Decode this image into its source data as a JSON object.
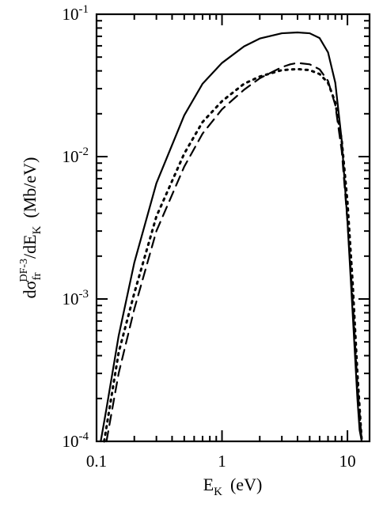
{
  "chart_data": {
    "type": "line",
    "title": "",
    "xscale": "log",
    "yscale": "log",
    "xlim": [
      0.1,
      15
    ],
    "ylim": [
      0.0001,
      0.1
    ],
    "grid": false,
    "legend": "none",
    "xlabel": {
      "main": "E",
      "sub": "K",
      "unit": "(eV)"
    },
    "ylabel": {
      "p1": "dσ",
      "sub": "fr",
      "sup": "DF-3",
      "p2": "/dE",
      "sub2": "K",
      "unit": "(Mb/eV)"
    },
    "x_ticks": [
      {
        "value": 0.1,
        "label": "0.1"
      },
      {
        "value": 1,
        "label": "1"
      },
      {
        "value": 10,
        "label": "10"
      }
    ],
    "y_ticks": [
      {
        "value": 0.0001,
        "base": "10",
        "exp": "-4"
      },
      {
        "value": 0.001,
        "base": "10",
        "exp": "-3"
      },
      {
        "value": 0.01,
        "base": "10",
        "exp": "-2"
      },
      {
        "value": 0.1,
        "base": "10",
        "exp": "-1"
      }
    ],
    "series": [
      {
        "style": "solid",
        "x": [
          0.108,
          0.12,
          0.15,
          0.2,
          0.3,
          0.5,
          0.7,
          1.0,
          1.5,
          2.0,
          3.0,
          4.0,
          5.0,
          6.0,
          7.0,
          8.0,
          9.0,
          10.0,
          11.0,
          12.0,
          12.5,
          13.0
        ],
        "y": [
          0.0001,
          0.00017,
          0.00055,
          0.0018,
          0.0065,
          0.0195,
          0.0325,
          0.0455,
          0.0595,
          0.0675,
          0.0735,
          0.0745,
          0.0735,
          0.068,
          0.054,
          0.033,
          0.013,
          0.0035,
          0.0008,
          0.0002,
          0.00012,
          0.0001
        ]
      },
      {
        "style": "dashed",
        "x": [
          0.12,
          0.15,
          0.2,
          0.3,
          0.5,
          0.7,
          1.0,
          1.5,
          2.0,
          3.0,
          3.5,
          4.0,
          5.0,
          6.0,
          7.0,
          8.0,
          9.0,
          10.0,
          11.0,
          12.0,
          13.0
        ],
        "y": [
          0.0001,
          0.0003,
          0.00085,
          0.003,
          0.0085,
          0.0145,
          0.0215,
          0.0295,
          0.0355,
          0.0425,
          0.0445,
          0.0455,
          0.0445,
          0.041,
          0.034,
          0.023,
          0.011,
          0.0035,
          0.001,
          0.00025,
          0.0001
        ]
      },
      {
        "style": "dotted",
        "x": [
          0.115,
          0.15,
          0.2,
          0.3,
          0.5,
          0.7,
          1.0,
          1.5,
          2.0,
          3.0,
          4.0,
          5.0,
          6.0,
          7.0,
          8.0,
          9.0,
          10.0,
          11.0,
          12.0,
          13.0
        ],
        "y": [
          0.0001,
          0.00042,
          0.0011,
          0.0038,
          0.0105,
          0.0175,
          0.0245,
          0.0325,
          0.0365,
          0.0405,
          0.0412,
          0.0405,
          0.038,
          0.033,
          0.024,
          0.013,
          0.0048,
          0.0013,
          0.0003,
          0.0001
        ]
      }
    ]
  }
}
